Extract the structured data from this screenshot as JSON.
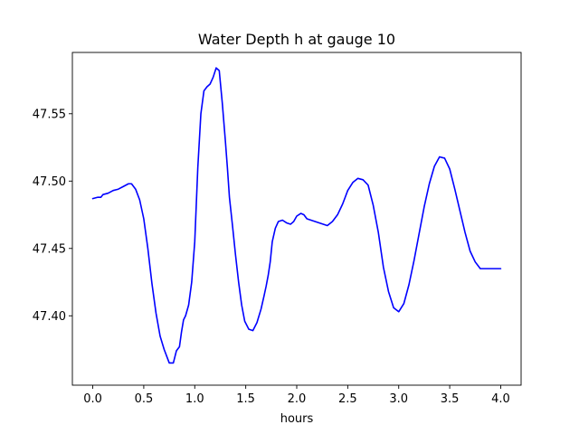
{
  "chart_data": {
    "type": "line",
    "title": "Water Depth h at gauge 10",
    "xlabel": "hours",
    "ylabel": "",
    "xlim": [
      -0.2,
      4.2
    ],
    "ylim": [
      47.3485,
      47.5955
    ],
    "xticks": [
      0.0,
      0.5,
      1.0,
      1.5,
      2.0,
      2.5,
      3.0,
      3.5,
      4.0
    ],
    "xtick_labels": [
      "0.0",
      "0.5",
      "1.0",
      "1.5",
      "2.0",
      "2.5",
      "3.0",
      "3.5",
      "4.0"
    ],
    "yticks": [
      47.4,
      47.45,
      47.5,
      47.55
    ],
    "ytick_labels": [
      "47.40",
      "47.45",
      "47.50",
      "47.55"
    ],
    "grid": false,
    "legend": "none",
    "line_color": "#0000ff",
    "series": [
      {
        "x": [
          0.0,
          0.05,
          0.08,
          0.1,
          0.15,
          0.2,
          0.25,
          0.3,
          0.35,
          0.38,
          0.42,
          0.46,
          0.5,
          0.54,
          0.58,
          0.62,
          0.66,
          0.7,
          0.75,
          0.79,
          0.82,
          0.85,
          0.87,
          0.89,
          0.91,
          0.94,
          0.97,
          1.0,
          1.03,
          1.06,
          1.09,
          1.12,
          1.15,
          1.18,
          1.21,
          1.24,
          1.27,
          1.3,
          1.32,
          1.34,
          1.37,
          1.4,
          1.43,
          1.46,
          1.49,
          1.53,
          1.57,
          1.61,
          1.65,
          1.68,
          1.7,
          1.72,
          1.74,
          1.76,
          1.79,
          1.82,
          1.86,
          1.9,
          1.94,
          1.97,
          2.0,
          2.04,
          2.07,
          2.1,
          2.14,
          2.18,
          2.22,
          2.26,
          2.3,
          2.35,
          2.4,
          2.45,
          2.5,
          2.55,
          2.6,
          2.65,
          2.7,
          2.75,
          2.8,
          2.85,
          2.9,
          2.95,
          3.0,
          3.05,
          3.1,
          3.15,
          3.2,
          3.25,
          3.3,
          3.35,
          3.4,
          3.45,
          3.5,
          3.55,
          3.6,
          3.65,
          3.7,
          3.75,
          3.8,
          3.85,
          3.9,
          3.95,
          4.0
        ],
        "values": [
          47.487,
          47.488,
          47.488,
          47.49,
          47.491,
          47.493,
          47.494,
          47.496,
          47.498,
          47.498,
          47.494,
          47.486,
          47.472,
          47.45,
          47.424,
          47.402,
          47.385,
          47.375,
          47.365,
          47.365,
          47.374,
          47.377,
          47.388,
          47.397,
          47.4,
          47.408,
          47.425,
          47.455,
          47.51,
          47.55,
          47.567,
          47.57,
          47.572,
          47.577,
          47.584,
          47.582,
          47.558,
          47.53,
          47.51,
          47.488,
          47.467,
          47.445,
          47.425,
          47.408,
          47.396,
          47.39,
          47.389,
          47.395,
          47.405,
          47.415,
          47.422,
          47.43,
          47.44,
          47.455,
          47.465,
          47.47,
          47.471,
          47.469,
          47.468,
          47.47,
          47.474,
          47.476,
          47.475,
          47.472,
          47.471,
          47.47,
          47.469,
          47.468,
          47.467,
          47.47,
          47.475,
          47.483,
          47.493,
          47.499,
          47.502,
          47.501,
          47.497,
          47.482,
          47.462,
          47.436,
          47.418,
          47.406,
          47.403,
          47.409,
          47.423,
          47.441,
          47.461,
          47.481,
          47.498,
          47.511,
          47.518,
          47.517,
          47.509,
          47.494,
          47.478,
          47.462,
          47.448,
          47.44,
          47.435,
          47.435,
          47.435,
          47.435,
          47.435
        ]
      }
    ]
  }
}
